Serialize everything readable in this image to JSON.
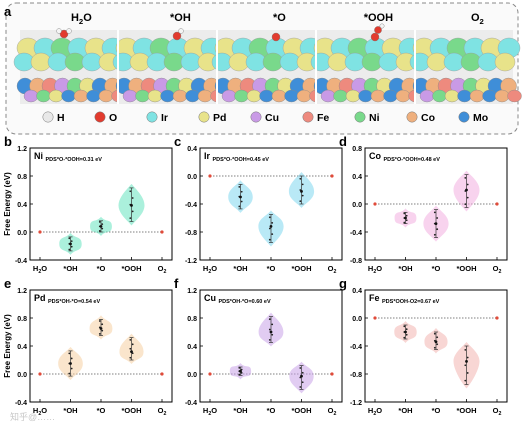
{
  "figure": {
    "panel_a": {
      "letter": "a",
      "states": [
        "H2O",
        "*OH",
        "*O",
        "*OOH",
        "O2"
      ],
      "legend": [
        {
          "label": "H",
          "color": "#e8e8e8"
        },
        {
          "label": "O",
          "color": "#e23b2e"
        },
        {
          "label": "Ir",
          "color": "#7fe3e3"
        },
        {
          "label": "Pd",
          "color": "#e8e38a"
        },
        {
          "label": "Cu",
          "color": "#c99ae6"
        },
        {
          "label": "Fe",
          "color": "#ee8a7e"
        },
        {
          "label": "Ni",
          "color": "#79d98b"
        },
        {
          "label": "Co",
          "color": "#efb07e"
        },
        {
          "label": "Mo",
          "color": "#3f8ed8"
        }
      ]
    },
    "watermark": "知乎@……"
  },
  "chart_data": [
    {
      "panel": "b",
      "type": "violin",
      "element": "Ni",
      "pds_label": "PDS*O-*OOH=0.31 eV",
      "color": "#66e3c0",
      "ylabel": "Free Energy (eV)",
      "categories": [
        "H2O",
        "*OH",
        "*O",
        "*OOH",
        "O2"
      ],
      "yticks": [
        -0.4,
        0.0,
        0.4,
        0.8,
        1.2
      ],
      "ylim": [
        -0.4,
        1.2
      ],
      "baseline": 0.0,
      "medians": [
        0.0,
        -0.17,
        0.08,
        0.38,
        0.0
      ],
      "ranges": [
        [
          0,
          0
        ],
        [
          -0.27,
          -0.07
        ],
        [
          0.0,
          0.16
        ],
        [
          0.15,
          0.63
        ],
        [
          0,
          0
        ]
      ]
    },
    {
      "panel": "c",
      "type": "violin",
      "element": "Ir",
      "pds_label": "PDS*O-*OOH=0.45 eV",
      "color": "#7fd7ee",
      "categories": [
        "H2O",
        "*OH",
        "*O",
        "*OOH",
        "O2"
      ],
      "yticks": [
        -1.2,
        -0.8,
        -0.4,
        0.0,
        0.4
      ],
      "ylim": [
        -1.2,
        0.4
      ],
      "baseline": 0.0,
      "medians": [
        0.0,
        -0.3,
        -0.72,
        -0.22,
        0.0
      ],
      "ranges": [
        [
          0,
          0
        ],
        [
          -0.47,
          -0.12
        ],
        [
          -0.95,
          -0.55
        ],
        [
          -0.4,
          0.0
        ],
        [
          0,
          0
        ]
      ]
    },
    {
      "panel": "d",
      "type": "violin",
      "element": "Co",
      "pds_label": "PDS*O-*OOH=0.48 eV",
      "color": "#f2aee0",
      "categories": [
        "H2O",
        "*OH",
        "*O",
        "*OOH",
        "O2"
      ],
      "yticks": [
        -0.8,
        -0.4,
        0.0,
        0.4,
        0.8
      ],
      "ylim": [
        -0.8,
        0.8
      ],
      "baseline": 0.0,
      "medians": [
        0.0,
        -0.2,
        -0.28,
        0.2,
        0.0
      ],
      "ranges": [
        [
          0,
          0
        ],
        [
          -0.28,
          -0.12
        ],
        [
          -0.48,
          -0.08
        ],
        [
          -0.05,
          0.42
        ],
        [
          0,
          0
        ]
      ]
    },
    {
      "panel": "e",
      "type": "violin",
      "element": "Pd",
      "pds_label": "PDS*OH-*O=0.54 eV",
      "color": "#f6cfa2",
      "ylabel": "Free Energy (eV)",
      "categories": [
        "H2O",
        "*OH",
        "*O",
        "*OOH",
        "O2"
      ],
      "yticks": [
        -0.4,
        0.0,
        0.4,
        0.8,
        1.2
      ],
      "ylim": [
        -0.4,
        1.2
      ],
      "baseline": 0.0,
      "medians": [
        0.0,
        0.15,
        0.65,
        0.32,
        0.0
      ],
      "ranges": [
        [
          0,
          0
        ],
        [
          -0.03,
          0.33
        ],
        [
          0.55,
          0.78
        ],
        [
          0.2,
          0.52
        ],
        [
          0,
          0
        ]
      ]
    },
    {
      "panel": "f",
      "type": "violin",
      "element": "Cu",
      "pds_label": "PDS*OH-*O=0.60 eV",
      "color": "#c9a3e8",
      "categories": [
        "H2O",
        "*OH",
        "*O",
        "*OOH",
        "O2"
      ],
      "yticks": [
        -0.4,
        0.0,
        0.4,
        0.8,
        1.2
      ],
      "ylim": [
        -0.4,
        1.2
      ],
      "baseline": 0.0,
      "medians": [
        0.0,
        0.04,
        0.6,
        -0.03,
        0.0
      ],
      "ranges": [
        [
          0,
          0
        ],
        [
          -0.02,
          0.1
        ],
        [
          0.45,
          0.82
        ],
        [
          -0.22,
          0.12
        ],
        [
          0,
          0
        ]
      ]
    },
    {
      "panel": "g",
      "type": "violin",
      "element": "Fe",
      "pds_label": "PDS*OOH-O2=0.67 eV",
      "color": "#f2b4b0",
      "categories": [
        "H2O",
        "*OH",
        "*O",
        "*OOH",
        "O2"
      ],
      "yticks": [
        -1.2,
        -0.8,
        -0.4,
        0.0,
        0.4
      ],
      "ylim": [
        -1.2,
        0.4
      ],
      "baseline": 0.0,
      "medians": [
        0.0,
        -0.2,
        -0.34,
        -0.62,
        0.0
      ],
      "ranges": [
        [
          0,
          0
        ],
        [
          -0.3,
          -0.1
        ],
        [
          -0.45,
          -0.2
        ],
        [
          -0.95,
          -0.4
        ],
        [
          0,
          0
        ]
      ]
    }
  ]
}
